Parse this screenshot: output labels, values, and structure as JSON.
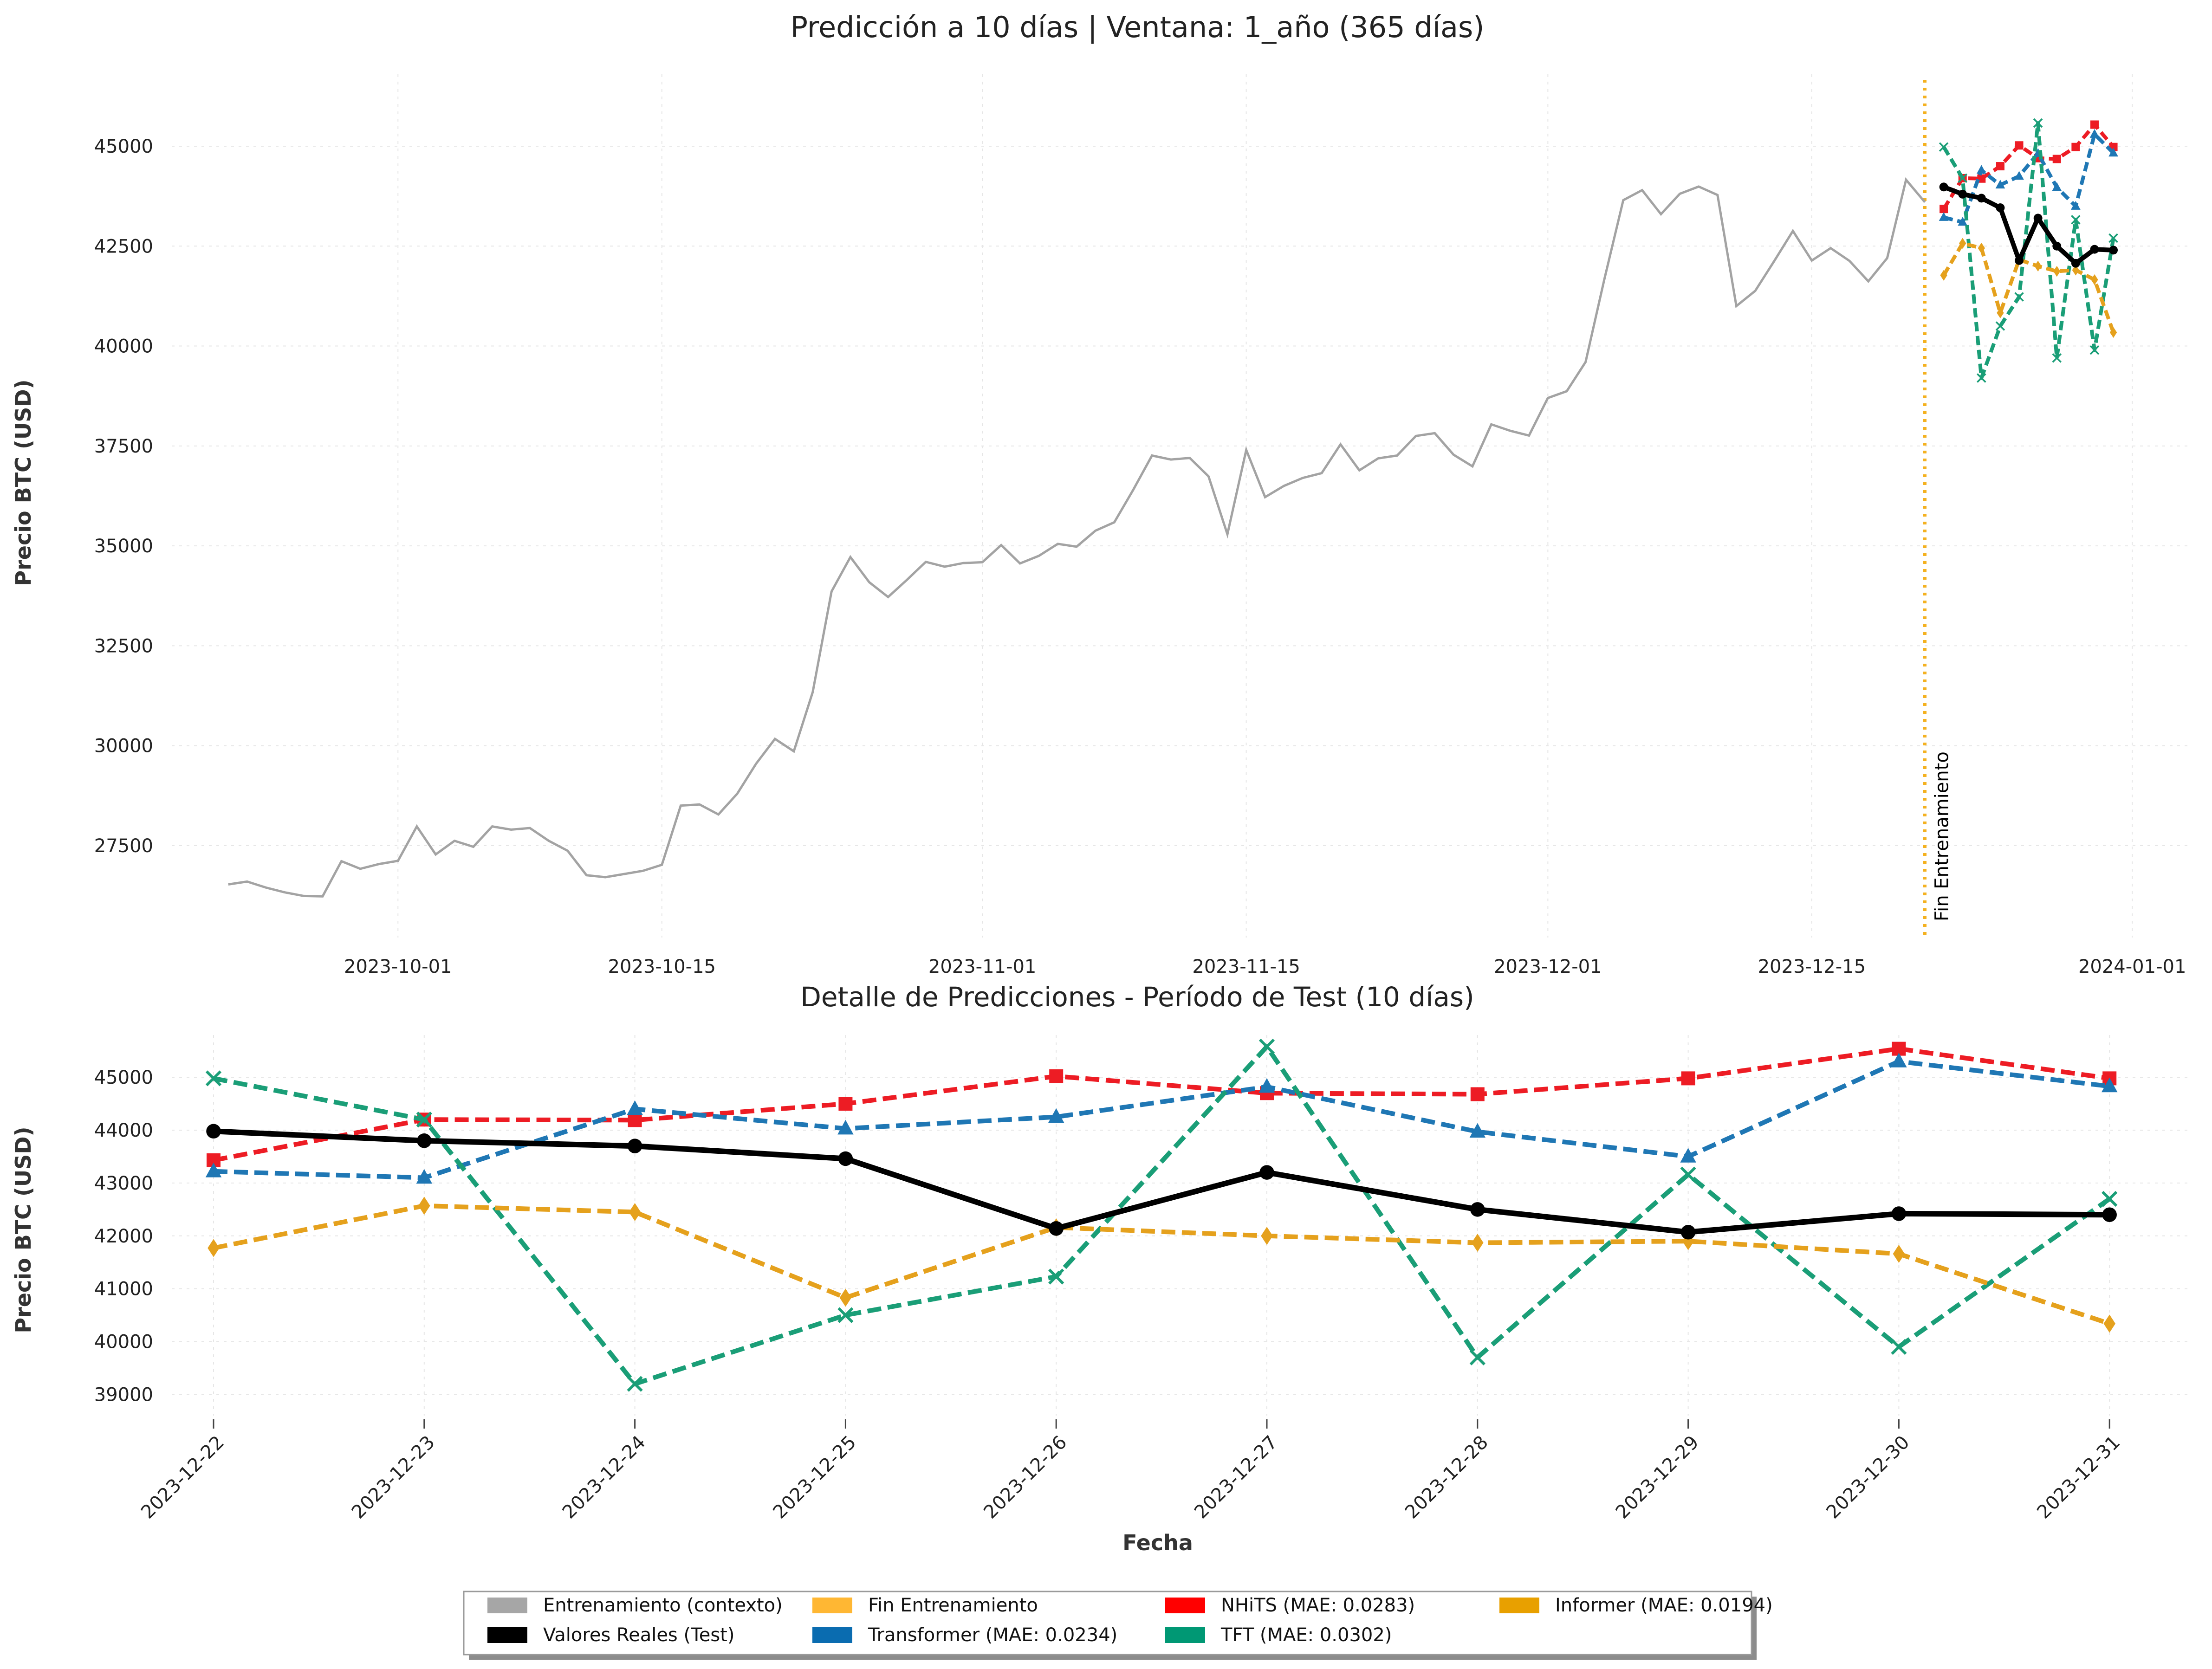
{
  "chart_data": [
    {
      "type": "line",
      "title": "Predicción a 10 días | Ventana: 1_año (365 días)",
      "xlabel": "",
      "ylabel": "Precio BTC (USD)",
      "xlim": [
        "2023-09-19",
        "2024-01-04"
      ],
      "ylim": [
        25200,
        46800
      ],
      "grid": true,
      "xtick_labels": [
        "2023-10-01",
        "2023-10-15",
        "2023-11-01",
        "2023-11-15",
        "2023-12-01",
        "2023-12-15",
        "2024-01-01"
      ],
      "ytick_labels": [
        "27500",
        "30000",
        "32500",
        "35000",
        "37500",
        "40000",
        "42500",
        "45000"
      ],
      "annotation": {
        "label": "Fin Entrenamiento",
        "x": "2023-12-21"
      },
      "context_series": {
        "name": "Entrenamiento (contexto)",
        "start": "2023-09-22",
        "values": [
          26530,
          26600,
          26450,
          26330,
          26240,
          26230,
          27110,
          26920,
          27040,
          27120,
          27980,
          27280,
          27620,
          27470,
          27980,
          27900,
          27940,
          27620,
          27370,
          26760,
          26710,
          26790,
          26870,
          27020,
          28500,
          28530,
          28280,
          28800,
          29550,
          30170,
          29860,
          31340,
          33860,
          34720,
          34090,
          33720,
          34150,
          34600,
          34480,
          34570,
          34590,
          35020,
          34560,
          34750,
          35050,
          34980,
          35380,
          35590,
          36400,
          37260,
          37160,
          37200,
          36740,
          35290,
          37400,
          36220,
          36500,
          36700,
          36820,
          37540,
          36890,
          37190,
          37260,
          37750,
          37820,
          37280,
          36990,
          38040,
          37880,
          37760,
          38700,
          38870,
          39600,
          41680,
          43650,
          43900,
          43300,
          43810,
          43990,
          43780,
          41000,
          41380,
          42120,
          42880,
          42140,
          42450,
          42130,
          41620,
          42200,
          44160,
          43600
        ]
      }
    },
    {
      "type": "line",
      "title": "Detalle de Predicciones - Período de Test (10 días)",
      "xlabel": "Fecha",
      "ylabel": "Precio BTC (USD)",
      "ylim": [
        38600,
        45800
      ],
      "grid": true,
      "ytick_labels": [
        "39000",
        "40000",
        "41000",
        "42000",
        "43000",
        "44000",
        "45000"
      ],
      "categories": [
        "2023-12-22",
        "2023-12-23",
        "2023-12-24",
        "2023-12-25",
        "2023-12-26",
        "2023-12-27",
        "2023-12-28",
        "2023-12-29",
        "2023-12-30",
        "2023-12-31"
      ],
      "series": [
        {
          "name": "Valores Reales (Test)",
          "color": "#000000",
          "style": "solid",
          "marker": "circle",
          "values": [
            43980,
            43800,
            43700,
            43460,
            42140,
            43200,
            42500,
            42070,
            42420,
            42400
          ]
        },
        {
          "name": "NHiTS (MAE: 0.0283)",
          "color": "#ed1c24",
          "style": "dashed",
          "marker": "square",
          "values": [
            43430,
            44200,
            44190,
            44500,
            45020,
            44700,
            44680,
            44980,
            45540,
            44980
          ]
        },
        {
          "name": "Transformer (MAE: 0.0234)",
          "color": "#1f77b4",
          "style": "dashed",
          "marker": "triangle",
          "values": [
            43220,
            43100,
            44400,
            44030,
            44250,
            44820,
            43970,
            43500,
            45300,
            44830
          ]
        },
        {
          "name": "TFT (MAE: 0.0302)",
          "color": "#1a9e77",
          "style": "dashed",
          "marker": "x",
          "values": [
            44980,
            44200,
            39200,
            40500,
            41230,
            45580,
            39700,
            43160,
            39900,
            42700
          ]
        },
        {
          "name": "Informer (MAE: 0.0194)",
          "color": "#e5a11d",
          "style": "dashed",
          "marker": "diamond",
          "values": [
            41770,
            42570,
            42450,
            40830,
            42160,
            42000,
            41870,
            41900,
            41660,
            40340
          ]
        }
      ]
    }
  ],
  "legend": {
    "position": "bottom-center",
    "items": [
      {
        "label": "Entrenamiento (contexto)",
        "color": "#a6a6a6"
      },
      {
        "label": "Valores Reales (Test)",
        "color": "#000000"
      },
      {
        "label": "Fin Entrenamiento",
        "color": "#ffb733"
      },
      {
        "label": "Transformer (MAE: 0.0234)",
        "color": "#0a6cb0"
      },
      {
        "label": "NHiTS (MAE: 0.0283)",
        "color": "#ff0000"
      },
      {
        "label": "TFT (MAE: 0.0302)",
        "color": "#009874"
      },
      {
        "label": "Informer (MAE: 0.0194)",
        "color": "#e8a000"
      }
    ]
  }
}
